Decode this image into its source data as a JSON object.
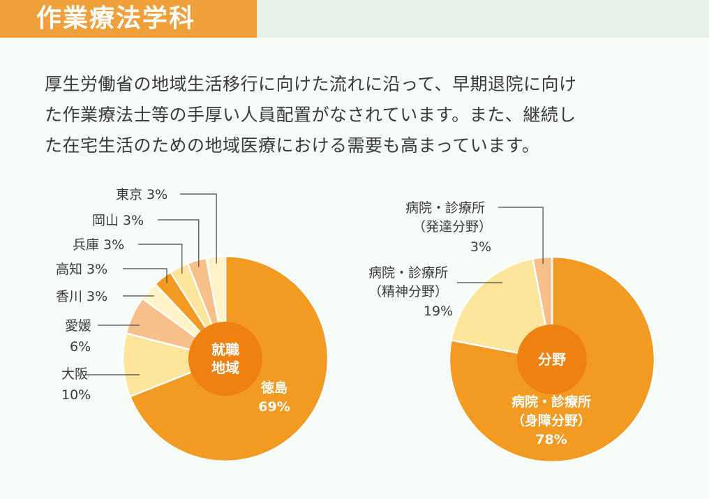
{
  "title": "作業療法学科",
  "body_lines": [
    "厚生労働省の地域生活移行に向けた流れに沿って、早期退院に向け",
    "た作業療法士等の手厚い人員配置がなされています。また、継続し",
    "た在宅生活のための地域医療における需要も高まっています。"
  ],
  "chart_data": [
    {
      "type": "pie",
      "center_label": [
        "就職",
        "地域"
      ],
      "slices": [
        {
          "label": "徳島",
          "value": 69,
          "value_text": "69%",
          "color": "#f29a22"
        },
        {
          "label": "大阪",
          "value": 10,
          "value_text": "10%",
          "color": "#fde59b"
        },
        {
          "label": "愛媛",
          "value": 6,
          "value_text": "6%",
          "color": "#f7c08a"
        },
        {
          "label": "香川",
          "value": 3,
          "value_text": "3%",
          "color": "#fff3c8"
        },
        {
          "label": "高知",
          "value": 3,
          "value_text": "3%",
          "color": "#f29a22"
        },
        {
          "label": "兵庫",
          "value": 3,
          "value_text": "3%",
          "color": "#fde59b"
        },
        {
          "label": "岡山",
          "value": 3,
          "value_text": "3%",
          "color": "#f7c08a"
        },
        {
          "label": "東京",
          "value": 3,
          "value_text": "3%",
          "color": "#fff3c8"
        }
      ],
      "center_color": "#ee8110"
    },
    {
      "type": "pie",
      "center_label": [
        "分野"
      ],
      "slices": [
        {
          "label": "病院・診療所（身障分野）",
          "lines": [
            "病院・診療所",
            "（身障分野）"
          ],
          "value": 78,
          "value_text": "78%",
          "color": "#f29a22"
        },
        {
          "label": "病院・診療所（精神分野）",
          "lines": [
            "病院・診療所",
            "（精神分野）"
          ],
          "value": 19,
          "value_text": "19%",
          "color": "#fde59b"
        },
        {
          "label": "病院・診療所（発達分野）",
          "lines": [
            "病院・診療所",
            "（発達分野）"
          ],
          "value": 3,
          "value_text": "3%",
          "color": "#f7c08a"
        }
      ],
      "center_color": "#ee8110"
    }
  ]
}
